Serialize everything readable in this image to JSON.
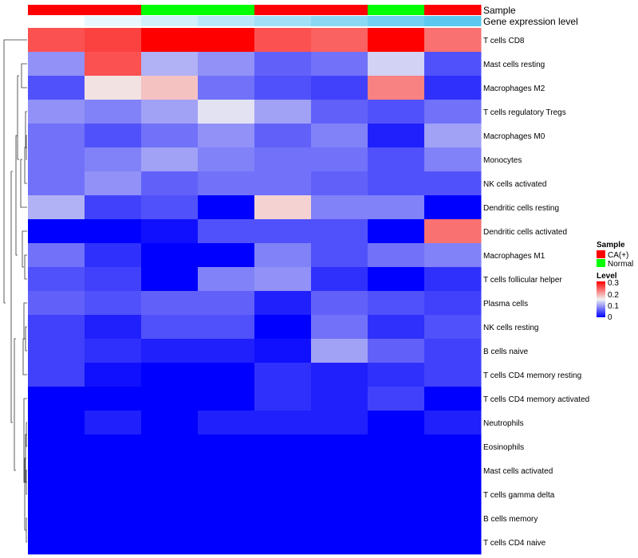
{
  "chart_data": {
    "type": "heatmap",
    "title": "",
    "annotation_tracks": [
      "Sample",
      "Gene expression level"
    ],
    "columns": [
      {
        "sample": "CA(+)",
        "expression": 0.0
      },
      {
        "sample": "CA(+)",
        "expression": 0.05
      },
      {
        "sample": "Normal",
        "expression": 0.1
      },
      {
        "sample": "Normal",
        "expression": 0.15
      },
      {
        "sample": "CA(+)",
        "expression": 0.2
      },
      {
        "sample": "CA(+)",
        "expression": 0.25
      },
      {
        "sample": "Normal",
        "expression": 0.3
      },
      {
        "sample": "CA(+)",
        "expression": 0.35
      }
    ],
    "rows": [
      "T cells CD8",
      "Mast cells resting",
      "Macrophages M2",
      "T cells regulatory  Tregs",
      "Macrophages M0",
      "Monocytes",
      "NK cells activated",
      "Dendritic cells resting",
      "Dendritic cells activated",
      "Macrophages M1",
      "T cells follicular helper",
      "Plasma cells",
      "NK cells resting",
      "B cells naive",
      "T cells CD4 memory resting",
      "T cells CD4 memory activated",
      "Neutrophils",
      "Eosinophils",
      "Mast cells activated",
      "T cells gamma delta",
      "B cells memory",
      "T cells CD4 naive"
    ],
    "values": [
      [
        0.25,
        0.26,
        0.3,
        0.3,
        0.25,
        0.24,
        0.3,
        0.23
      ],
      [
        0.09,
        0.25,
        0.11,
        0.09,
        0.06,
        0.07,
        0.13,
        0.05
      ],
      [
        0.05,
        0.16,
        0.18,
        0.07,
        0.05,
        0.04,
        0.22,
        0.03
      ],
      [
        0.09,
        0.08,
        0.1,
        0.14,
        0.1,
        0.06,
        0.05,
        0.07
      ],
      [
        0.07,
        0.05,
        0.07,
        0.09,
        0.06,
        0.08,
        0.02,
        0.1
      ],
      [
        0.07,
        0.08,
        0.1,
        0.08,
        0.07,
        0.07,
        0.05,
        0.08
      ],
      [
        0.07,
        0.09,
        0.06,
        0.07,
        0.07,
        0.06,
        0.05,
        0.05
      ],
      [
        0.11,
        0.04,
        0.05,
        0.0,
        0.17,
        0.08,
        0.08,
        0.0
      ],
      [
        0.0,
        0.0,
        0.01,
        0.05,
        0.05,
        0.05,
        0.0,
        0.23
      ],
      [
        0.07,
        0.03,
        0.0,
        0.0,
        0.08,
        0.05,
        0.07,
        0.08
      ],
      [
        0.05,
        0.04,
        0.0,
        0.08,
        0.09,
        0.03,
        0.0,
        0.03
      ],
      [
        0.06,
        0.05,
        0.06,
        0.06,
        0.02,
        0.06,
        0.05,
        0.04
      ],
      [
        0.04,
        0.02,
        0.05,
        0.05,
        0.0,
        0.07,
        0.03,
        0.05
      ],
      [
        0.04,
        0.03,
        0.02,
        0.02,
        0.01,
        0.1,
        0.06,
        0.04
      ],
      [
        0.04,
        0.01,
        0.0,
        0.0,
        0.03,
        0.02,
        0.03,
        0.04
      ],
      [
        0.0,
        0.0,
        0.0,
        0.0,
        0.03,
        0.02,
        0.04,
        0.0
      ],
      [
        0.0,
        0.02,
        0.0,
        0.02,
        0.02,
        0.02,
        0.0,
        0.02
      ],
      [
        0.0,
        0.0,
        0.0,
        0.0,
        0.0,
        0.0,
        0.0,
        0.0
      ],
      [
        0.0,
        0.0,
        0.0,
        0.0,
        0.0,
        0.0,
        0.0,
        0.0
      ],
      [
        0.0,
        0.0,
        0.0,
        0.0,
        0.0,
        0.0,
        0.0,
        0.0
      ],
      [
        0.0,
        0.0,
        0.0,
        0.0,
        0.0,
        0.0,
        0.0,
        0.0
      ],
      [
        0.0,
        0.0,
        0.0,
        0.0,
        0.0,
        0.0,
        0.0,
        0.0
      ]
    ],
    "color_scale": {
      "low": "#0000ff",
      "mid": "#f2f2f2",
      "high": "#ff0000",
      "min": 0,
      "mid_value": 0.15,
      "max": 0.3
    },
    "annotation_colors": {
      "Sample": {
        "CA(+)": "#ff0000",
        "Normal": "#00ff00"
      },
      "Gene expression level": {
        "low": "#ffffff",
        "high": "#5bc8f0"
      }
    },
    "legend": {
      "placement": "right",
      "sample_title": "Sample",
      "sample_entries": [
        {
          "label": "CA(+)",
          "color": "#ff0000"
        },
        {
          "label": "Normal",
          "color": "#00ff00"
        }
      ],
      "level_title": "Level",
      "level_ticks": [
        "0.3",
        "0.2",
        "0.1",
        "0"
      ]
    },
    "dendrogram": {
      "side": "left",
      "clustering": "rows"
    }
  }
}
